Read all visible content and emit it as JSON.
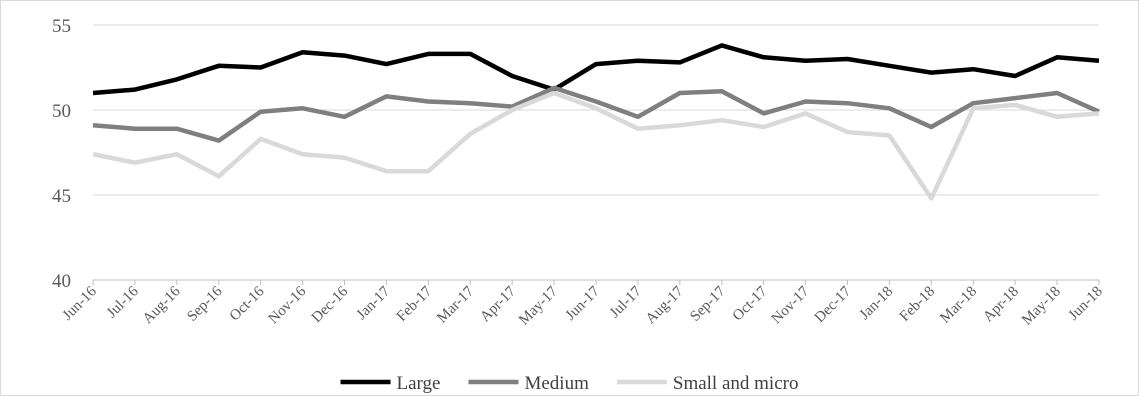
{
  "chart_data": {
    "type": "line",
    "title": "",
    "xlabel": "",
    "ylabel": "",
    "ylim": [
      40,
      55
    ],
    "yticks": [
      40,
      45,
      50,
      55
    ],
    "grid": "horizontal",
    "legend_position": "bottom",
    "categories": [
      "Jun-16",
      "Jul-16",
      "Aug-16",
      "Sep-16",
      "Oct-16",
      "Nov-16",
      "Dec-16",
      "Jan-17",
      "Feb-17",
      "Mar-17",
      "Apr-17",
      "May-17",
      "Jun-17",
      "Jul-17",
      "Aug-17",
      "Sep-17",
      "Oct-17",
      "Nov-17",
      "Dec-17",
      "Jan-18",
      "Feb-18",
      "Mar-18",
      "Apr-18",
      "May-18",
      "Jun-18"
    ],
    "series": [
      {
        "name": "Large",
        "color": "#000000",
        "values": [
          51.0,
          51.2,
          51.8,
          52.6,
          52.5,
          53.4,
          53.2,
          52.7,
          53.3,
          53.3,
          52.0,
          51.2,
          52.7,
          52.9,
          52.8,
          53.8,
          53.1,
          52.9,
          53.0,
          52.6,
          52.2,
          52.4,
          52.0,
          53.1,
          52.9
        ]
      },
      {
        "name": "Medium",
        "color": "#7f7f7f",
        "values": [
          49.1,
          48.9,
          48.9,
          48.2,
          49.9,
          50.1,
          49.6,
          50.8,
          50.5,
          50.4,
          50.2,
          51.3,
          50.5,
          49.6,
          51.0,
          51.1,
          49.8,
          50.5,
          50.4,
          50.1,
          49.0,
          50.4,
          50.7,
          51.0,
          49.9
        ]
      },
      {
        "name": "Small and micro",
        "color": "#d9d9d9",
        "values": [
          47.4,
          46.9,
          47.4,
          46.1,
          48.3,
          47.4,
          47.2,
          46.4,
          46.4,
          48.6,
          50.0,
          51.0,
          50.1,
          48.9,
          49.1,
          49.4,
          49.0,
          49.8,
          48.7,
          48.5,
          44.8,
          50.1,
          50.3,
          49.6,
          49.8
        ]
      }
    ]
  }
}
